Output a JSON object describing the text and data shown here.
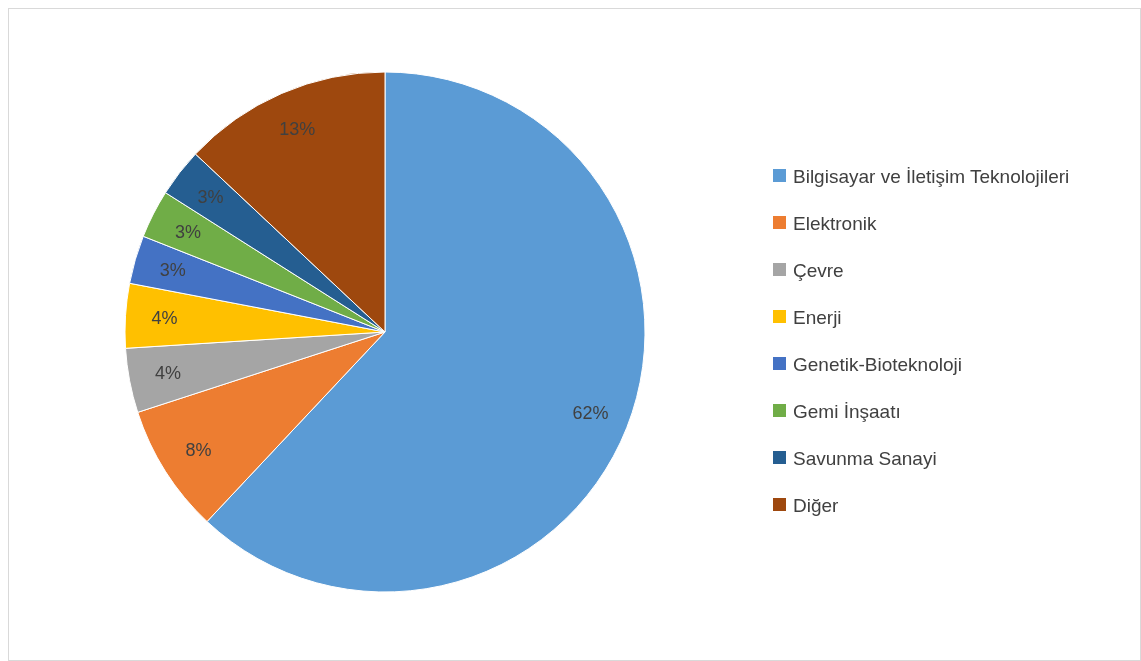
{
  "chart_data": {
    "type": "pie",
    "categories": [
      "Bilgisayar ve İletişim Teknolojileri",
      "Elektronik",
      "Çevre",
      "Enerji",
      "Genetik-Bioteknoloji",
      "Gemi İnşaatı",
      "Savunma Sanayi",
      "Diğer"
    ],
    "values": [
      62,
      8,
      4,
      4,
      3,
      3,
      3,
      13
    ],
    "colors": [
      "#5b9bd5",
      "#ed7d31",
      "#a5a5a5",
      "#ffc000",
      "#4472c4",
      "#70ad47",
      "#255e91",
      "#9e480e"
    ],
    "value_labels": [
      "62%",
      "8%",
      "4%",
      "4%",
      "3%",
      "3%",
      "3%",
      "13%"
    ],
    "legend": "right"
  }
}
